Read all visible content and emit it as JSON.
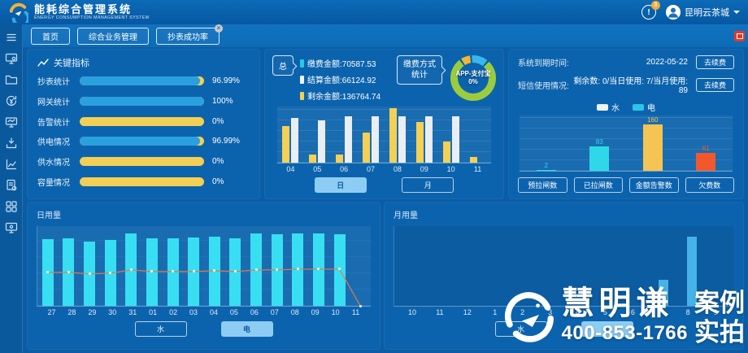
{
  "header": {
    "title": "能耗综合管理系统",
    "subtitle": "ENERGY CONSUMPTION MANAGEMENT SYSTEM",
    "notification_count": "3",
    "user_name": "昆明云茶城"
  },
  "tabs": [
    {
      "label": "首页",
      "closable": false
    },
    {
      "label": "综合业务管理",
      "closable": false
    },
    {
      "label": "抄表成功率",
      "closable": true
    }
  ],
  "sidebar": {
    "items": [
      {
        "icon": "menu-icon"
      },
      {
        "icon": "monitor-gear-icon"
      },
      {
        "icon": "folder-icon"
      },
      {
        "icon": "refresh-money-icon"
      },
      {
        "icon": "monitor-wave-icon"
      },
      {
        "icon": "download-box-icon"
      },
      {
        "icon": "line-chart-icon"
      },
      {
        "icon": "document-gear-icon"
      },
      {
        "icon": "grid-icon"
      },
      {
        "icon": "monitor-settings-icon"
      }
    ]
  },
  "panels": {
    "key_indicators": {
      "title": "关键指标"
    },
    "payment": {
      "total_button": "总",
      "method_button": "缴费方式统计",
      "legend": [
        {
          "label": "缴费金额:70587.53",
          "color": "#29c6e8"
        },
        {
          "label": "结算金额:66124.92",
          "color": "#eef3f8"
        },
        {
          "label": "剩余金额:136764.74",
          "color": "#f3cf53"
        }
      ],
      "donut_center_line1": "APP-支付宝",
      "donut_center_line2": "0%",
      "toggle": [
        {
          "label": "日",
          "active": true
        },
        {
          "label": "月",
          "active": false
        }
      ]
    },
    "system": {
      "expire_label": "系统到期时间:",
      "expire_value": "2022-05-22",
      "renew_button": "去续费",
      "sms_label": "短信使用情况:",
      "sms_value": "剩余数: 0/当日使用: 7/当月使用: 89",
      "renew_button2": "去续费",
      "legend": [
        {
          "label": "水",
          "color": "#eef3f8"
        },
        {
          "label": "电",
          "color": "#29c6e8"
        }
      ],
      "buttons": [
        "预拉闸数",
        "已拉闸数",
        "金额告警数",
        "欠费数"
      ]
    },
    "daily": {
      "title": "日用量",
      "toggle": [
        {
          "label": "水",
          "active": false
        },
        {
          "label": "电",
          "active": true
        }
      ]
    },
    "monthly": {
      "title": "月用量",
      "toggle": [
        {
          "label": "水",
          "active": false
        },
        {
          "label": "电",
          "active": true
        }
      ]
    }
  },
  "watermark": {
    "brand": "慧明谦",
    "tag_line1": "案例",
    "tag_line2": "实拍",
    "phone": "400-853-1766"
  },
  "chart_data": [
    {
      "id": "key_indicators",
      "type": "bar",
      "orientation": "horizontal-progress",
      "categories": [
        "抄表统计",
        "网关统计",
        "告警统计",
        "供电情况",
        "供水情况",
        "容量情况"
      ],
      "values": [
        96.99,
        100,
        0,
        96.99,
        0,
        0
      ],
      "value_labels": [
        "96.99%",
        "100%",
        "0%",
        "96.99%",
        "0%",
        "0%"
      ],
      "fill_color": "#2ba0df",
      "track_color": "#f3cf53",
      "xlim": [
        0,
        100
      ]
    },
    {
      "id": "payment_methods",
      "type": "pie",
      "title": "缴费方式统计",
      "center_label": "APP-支付宝 0%",
      "slices": [
        {
          "name": "yellow-segment",
          "value": 8,
          "color": "#f3b632"
        },
        {
          "name": "blue-segment",
          "value": 13,
          "color": "#3bb6e8"
        },
        {
          "name": "green-segment",
          "value": 79,
          "color": "#9ccc3d"
        }
      ],
      "note": "slice percentages estimated from arc lengths; only center label visible"
    },
    {
      "id": "payment_daily",
      "type": "bar",
      "categories": [
        "04",
        "05",
        "06",
        "07",
        "08",
        "09",
        "10",
        "11"
      ],
      "series": [
        {
          "name": "缴费",
          "color": "#f5d054",
          "values": [
            65,
            15,
            15,
            53,
            97,
            73,
            38,
            10
          ]
        },
        {
          "name": "结算",
          "color": "#e9eef5",
          "values": [
            80,
            76,
            82,
            82,
            82,
            82,
            82,
            0
          ]
        }
      ],
      "ylim": [
        0,
        100
      ],
      "note": "y-axis unlabeled; values are relative heights in % of plot"
    },
    {
      "id": "alarm_counts",
      "type": "bar",
      "categories": [
        "预拉闸数",
        "已拉闸数",
        "金额告警数",
        "欠费数"
      ],
      "values": [
        2,
        83,
        160,
        61
      ],
      "colors": [
        "#2fd8e8",
        "#2fd8e8",
        "#f6c452",
        "#f4572c"
      ],
      "ylim": [
        0,
        190
      ],
      "show_value_labels": true
    },
    {
      "id": "daily_usage",
      "type": "bar+line",
      "title": "日用量",
      "categories": [
        "27",
        "28",
        "29",
        "30",
        "31",
        "01",
        "02",
        "03",
        "04",
        "05",
        "06",
        "07",
        "08",
        "09",
        "10",
        "11"
      ],
      "series": [
        {
          "name": "电量柱",
          "type": "bar",
          "color": "#38dff2",
          "values": [
            84,
            85,
            81,
            83,
            91,
            85,
            85,
            86,
            87,
            85,
            91,
            90,
            91,
            91,
            90,
            0
          ]
        },
        {
          "name": "趋势线",
          "type": "line",
          "color": "#e07b4a",
          "values": [
            42,
            42,
            40,
            41,
            45,
            43,
            43,
            43,
            44,
            43,
            45,
            45,
            46,
            46,
            46,
            0
          ]
        }
      ],
      "ylim": [
        0,
        100
      ],
      "note": "y-axis unlabeled; values are relative heights in % of plot"
    },
    {
      "id": "monthly_usage",
      "type": "bar",
      "title": "月用量",
      "categories": [
        "10",
        "11",
        "12",
        "1",
        "2",
        "3",
        "4",
        "5",
        "6",
        "7",
        "8",
        "9"
      ],
      "values": [
        0,
        0,
        0,
        0,
        0,
        0,
        0,
        0,
        0,
        33,
        87,
        0
      ],
      "color": "#45b2e8",
      "ylim": [
        0,
        100
      ],
      "note": "y-axis unlabeled; values are relative heights in % of plot"
    }
  ]
}
